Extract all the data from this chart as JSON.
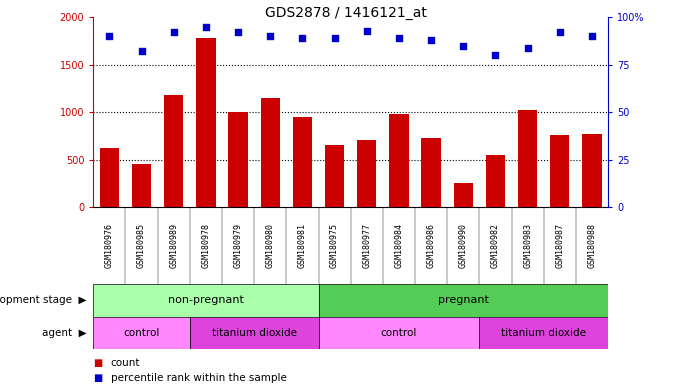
{
  "title": "GDS2878 / 1416121_at",
  "samples": [
    "GSM180976",
    "GSM180985",
    "GSM180989",
    "GSM180978",
    "GSM180979",
    "GSM180980",
    "GSM180981",
    "GSM180975",
    "GSM180977",
    "GSM180984",
    "GSM180986",
    "GSM180990",
    "GSM180982",
    "GSM180983",
    "GSM180987",
    "GSM180988"
  ],
  "counts": [
    620,
    460,
    1180,
    1780,
    1000,
    1150,
    950,
    660,
    710,
    980,
    730,
    260,
    550,
    1020,
    760,
    770
  ],
  "percentiles": [
    90,
    82,
    92,
    95,
    92,
    90,
    89,
    89,
    93,
    89,
    88,
    85,
    80,
    84,
    92,
    90
  ],
  "bar_color": "#cc0000",
  "dot_color": "#0000cc",
  "ylim_left": [
    0,
    2000
  ],
  "ylim_right": [
    0,
    100
  ],
  "yticks_left": [
    0,
    500,
    1000,
    1500,
    2000
  ],
  "ytick_labels_left": [
    "0",
    "500",
    "1000",
    "1500",
    "2000"
  ],
  "yticks_right": [
    0,
    25,
    50,
    75,
    100
  ],
  "ytick_labels_right": [
    "0",
    "25",
    "50",
    "75",
    "100%"
  ],
  "development_stage_labels": [
    "non-pregnant",
    "pregnant"
  ],
  "dev_stage_color_np": "#aaffaa",
  "dev_stage_color_p": "#55cc55",
  "agent_color_control": "#ff88ff",
  "agent_color_tio2": "#dd44dd",
  "legend_count_color": "#cc0000",
  "legend_dot_color": "#0000cc",
  "background_color": "#ffffff",
  "tick_color_left": "#cc0000",
  "tick_color_right": "#0000cc",
  "np_count": 7,
  "p_count": 9,
  "control1_count": 3,
  "tio2_1_count": 4,
  "control2_count": 5,
  "tio2_2_count": 4
}
